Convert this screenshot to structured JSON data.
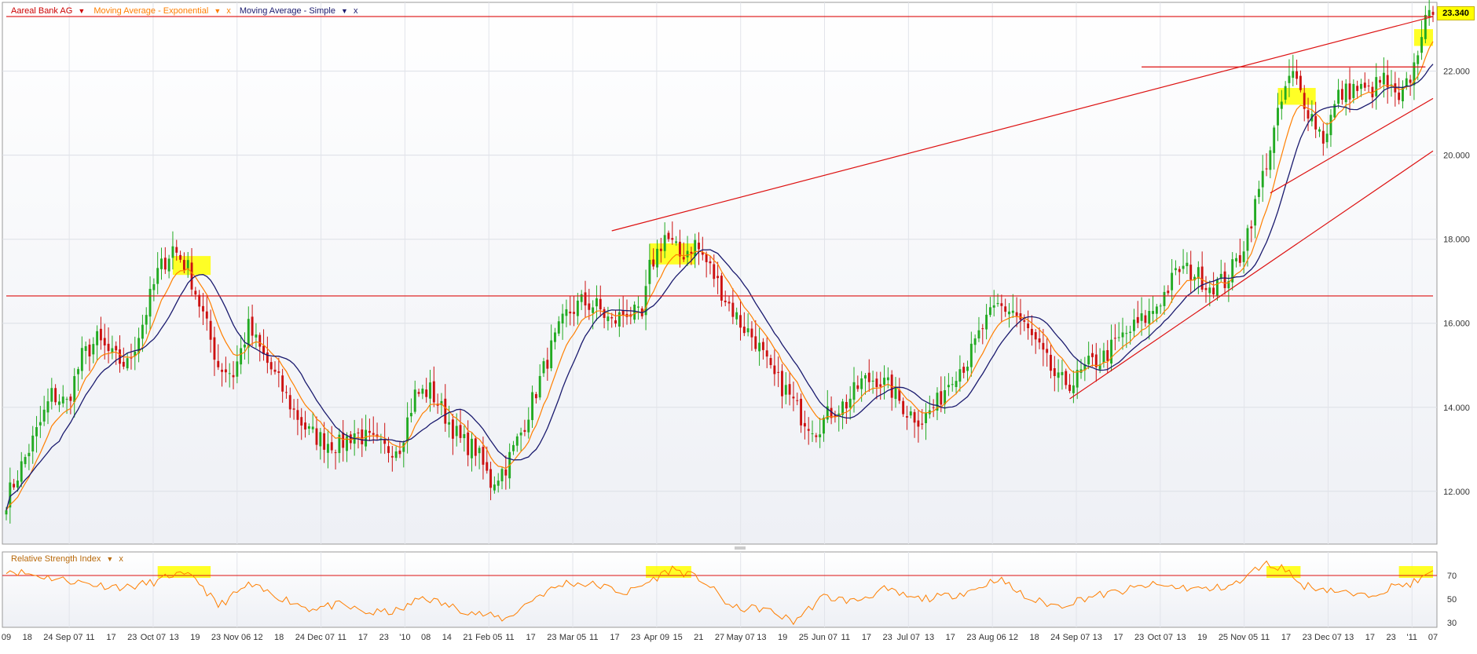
{
  "legend": {
    "instrument": "Aareal Bank AG",
    "ema": "Moving Average - Exponential",
    "sma": "Moving Average - Simple",
    "close": "x"
  },
  "rsi_legend": {
    "label": "Relative Strength Index",
    "close": "x"
  },
  "last_price": "23.340",
  "colors": {
    "up": "#22aa22",
    "down": "#cc1111",
    "ema": "#ff7f00",
    "sma": "#1a1a6e",
    "trendline": "#dd1111",
    "highlight": "#ffff00",
    "rsi": "#ff7f00",
    "legend_instrument": "#cc0000",
    "legend_sma": "#1a1a6e"
  },
  "chart_data": [
    {
      "type": "candlestick",
      "price_axis": {
        "ticks": [
          "22.000",
          "20.000",
          "18.000",
          "16.000",
          "14.000",
          "12.000"
        ],
        "range": [
          10.8,
          23.6
        ]
      },
      "time_axis": [
        "09",
        "18",
        "24",
        "Sep 07",
        "11",
        "17",
        "23",
        "Oct 07",
        "13",
        "19",
        "23",
        "Nov 06",
        "12",
        "18",
        "24",
        "Dec 07",
        "11",
        "17",
        "23",
        "'10",
        "08",
        "14",
        "21",
        "Feb 05",
        "11",
        "17",
        "23",
        "Mar 05",
        "11",
        "17",
        "23",
        "Apr 09",
        "15",
        "21",
        "27",
        "May 07",
        "13",
        "19",
        "25",
        "Jun 07",
        "11",
        "17",
        "23",
        "Jul 07",
        "13",
        "17",
        "23",
        "Aug 06",
        "12",
        "18",
        "24",
        "Sep 07",
        "13",
        "17",
        "23",
        "Oct 07",
        "13",
        "19",
        "25",
        "Nov 05",
        "11",
        "17",
        "23",
        "Dec 07",
        "13",
        "17",
        "23",
        "'11",
        "07"
      ],
      "close_path": [
        [
          0,
          11.8
        ],
        [
          4,
          12.6
        ],
        [
          8,
          13.4
        ],
        [
          12,
          14.3
        ],
        [
          16,
          14.1
        ],
        [
          20,
          15.2
        ],
        [
          24,
          15.6
        ],
        [
          28,
          15.2
        ],
        [
          32,
          15.0
        ],
        [
          36,
          16.0
        ],
        [
          40,
          17.2
        ],
        [
          44,
          17.8
        ],
        [
          48,
          17.3
        ],
        [
          52,
          16.2
        ],
        [
          56,
          15.0
        ],
        [
          60,
          14.8
        ],
        [
          64,
          15.9
        ],
        [
          68,
          15.2
        ],
        [
          72,
          14.6
        ],
        [
          76,
          13.9
        ],
        [
          80,
          13.4
        ],
        [
          84,
          13.2
        ],
        [
          88,
          13.1
        ],
        [
          92,
          13.4
        ],
        [
          96,
          13.2
        ],
        [
          100,
          13.0
        ],
        [
          104,
          13.1
        ],
        [
          108,
          14.3
        ],
        [
          112,
          14.4
        ],
        [
          116,
          13.8
        ],
        [
          120,
          13.2
        ],
        [
          124,
          13.0
        ],
        [
          128,
          12.2
        ],
        [
          132,
          12.6
        ],
        [
          136,
          13.4
        ],
        [
          140,
          14.4
        ],
        [
          144,
          15.4
        ],
        [
          148,
          16.2
        ],
        [
          152,
          16.5
        ],
        [
          156,
          16.4
        ],
        [
          160,
          16.0
        ],
        [
          164,
          16.3
        ],
        [
          168,
          16.1
        ],
        [
          170,
          17.3
        ],
        [
          174,
          18.1
        ],
        [
          178,
          17.6
        ],
        [
          182,
          17.9
        ],
        [
          186,
          17.3
        ],
        [
          190,
          16.6
        ],
        [
          194,
          16.0
        ],
        [
          198,
          15.6
        ],
        [
          202,
          14.8
        ],
        [
          206,
          14.4
        ],
        [
          210,
          13.8
        ],
        [
          214,
          13.5
        ],
        [
          218,
          13.9
        ],
        [
          222,
          14.1
        ],
        [
          226,
          14.6
        ],
        [
          230,
          14.7
        ],
        [
          234,
          14.4
        ],
        [
          238,
          13.9
        ],
        [
          242,
          13.7
        ],
        [
          246,
          14.1
        ],
        [
          250,
          14.8
        ],
        [
          254,
          15.1
        ],
        [
          258,
          15.9
        ],
        [
          262,
          16.4
        ],
        [
          266,
          16.3
        ],
        [
          270,
          15.8
        ],
        [
          274,
          15.2
        ],
        [
          278,
          14.6
        ],
        [
          282,
          14.6
        ],
        [
          286,
          15.0
        ],
        [
          290,
          15.2
        ],
        [
          294,
          15.6
        ],
        [
          298,
          15.9
        ],
        [
          302,
          16.2
        ],
        [
          306,
          16.7
        ],
        [
          310,
          17.3
        ],
        [
          314,
          17.2
        ],
        [
          318,
          16.9
        ],
        [
          322,
          17.0
        ],
        [
          326,
          17.6
        ],
        [
          330,
          18.8
        ],
        [
          334,
          20.2
        ],
        [
          338,
          21.6
        ],
        [
          340,
          21.9
        ],
        [
          344,
          21.1
        ],
        [
          348,
          20.4
        ],
        [
          352,
          21.4
        ],
        [
          356,
          21.6
        ],
        [
          360,
          21.5
        ],
        [
          364,
          21.8
        ],
        [
          368,
          21.2
        ],
        [
          372,
          22.1
        ],
        [
          374,
          23.0
        ],
        [
          377,
          23.34
        ]
      ]
    },
    {
      "type": "line",
      "title": "Relative Strength Index",
      "y_axis": {
        "ticks": [
          70,
          50,
          30
        ],
        "range": [
          28,
          88
        ]
      },
      "x": [
        0,
        8,
        16,
        24,
        32,
        40,
        44,
        50,
        56,
        64,
        72,
        80,
        88,
        96,
        104,
        110,
        116,
        124,
        132,
        140,
        148,
        156,
        164,
        170,
        176,
        184,
        192,
        200,
        208,
        216,
        224,
        232,
        240,
        248,
        256,
        262,
        270,
        278,
        286,
        294,
        302,
        310,
        318,
        326,
        332,
        338,
        342,
        350,
        358,
        366,
        372,
        377
      ],
      "values": [
        75,
        70,
        66,
        62,
        60,
        65,
        71,
        68,
        44,
        62,
        52,
        42,
        45,
        38,
        40,
        52,
        45,
        38,
        33,
        52,
        64,
        62,
        55,
        65,
        76,
        66,
        42,
        42,
        31,
        52,
        48,
        58,
        50,
        52,
        58,
        68,
        50,
        44,
        52,
        56,
        62,
        60,
        58,
        64,
        80,
        76,
        62,
        58,
        52,
        60,
        64,
        72
      ]
    }
  ]
}
